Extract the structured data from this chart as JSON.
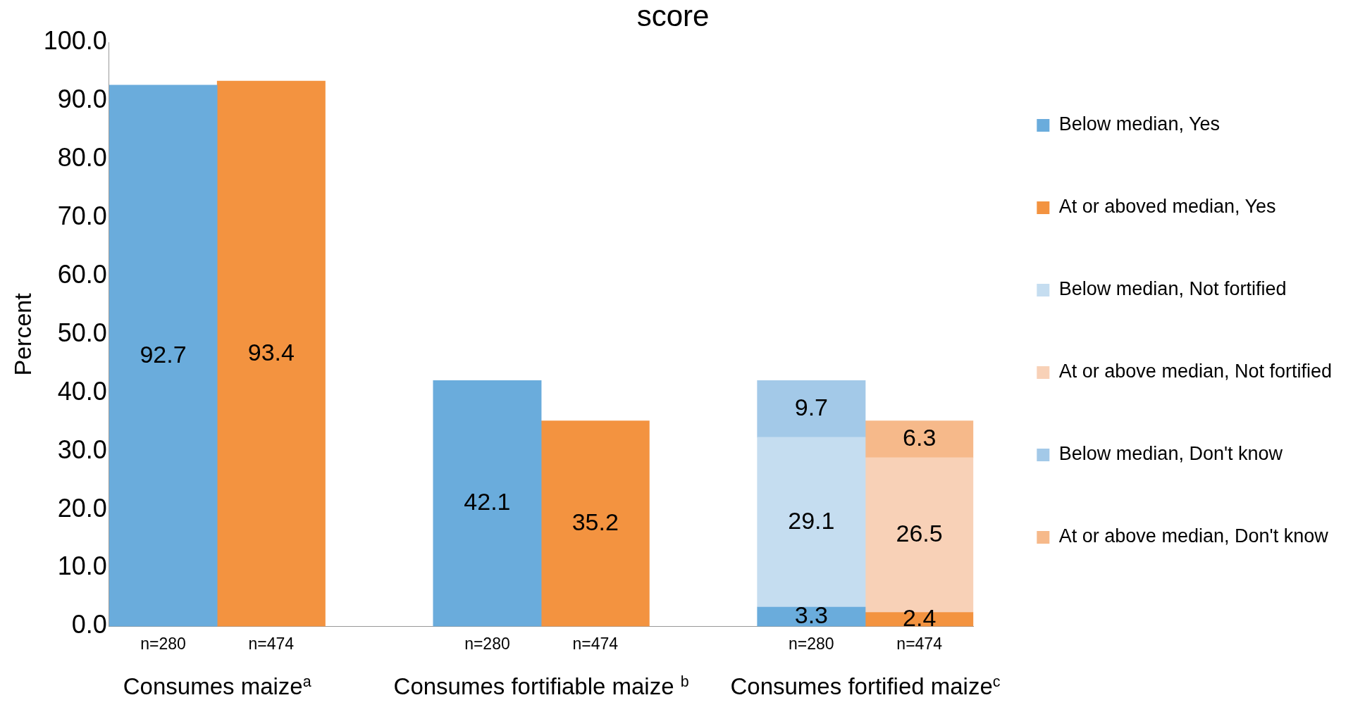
{
  "chart_data": {
    "type": "bar",
    "title": "score",
    "ylabel": "Percent",
    "stacked": true,
    "categories": [
      "n=280",
      "n=474",
      null,
      "n=280",
      "n=474",
      null,
      "n=280",
      "n=474"
    ],
    "series": [
      {
        "name": "Below median, Yes",
        "color": "#6aacdc",
        "values": [
          92.7,
          null,
          null,
          42.1,
          null,
          null,
          3.3,
          null
        ]
      },
      {
        "name": "At or aboved median, Yes",
        "color": "#f39340",
        "values": [
          null,
          93.4,
          null,
          null,
          35.2,
          null,
          null,
          2.4
        ]
      },
      {
        "name": "Below median, Not fortified",
        "color": "#c5ddf0",
        "values": [
          null,
          null,
          null,
          null,
          null,
          null,
          29.1,
          null
        ]
      },
      {
        "name": "At or above median, Not fortified",
        "color": "#f8d1b7",
        "values": [
          null,
          null,
          null,
          null,
          null,
          null,
          null,
          26.5
        ]
      },
      {
        "name": "Below median, Don't know",
        "color": "#a3c9e8",
        "values": [
          null,
          null,
          null,
          null,
          null,
          null,
          9.7,
          null
        ]
      },
      {
        "name": "At or above median, Don't know",
        "color": "#f6b98a",
        "values": [
          null,
          null,
          null,
          null,
          null,
          null,
          null,
          6.3
        ]
      }
    ],
    "ylim": [
      0,
      100
    ],
    "yticks": [
      {
        "value": 0,
        "label": "0.0"
      },
      {
        "value": 10,
        "label": "10.0"
      },
      {
        "value": 20,
        "label": "20.0"
      },
      {
        "value": 30,
        "label": "30.0"
      },
      {
        "value": 40,
        "label": "40.0"
      },
      {
        "value": 50,
        "label": "50.0"
      },
      {
        "value": 60,
        "label": "60.0"
      },
      {
        "value": 70,
        "label": "70.0"
      },
      {
        "value": 80,
        "label": "80.0"
      },
      {
        "value": 90,
        "label": "90.0"
      },
      {
        "value": 100,
        "label": "100.0"
      }
    ],
    "grid": false,
    "legend": "right",
    "data_labels": true,
    "annotations": [
      "Consumes maize$^{a}$",
      "Consumes fortifiable maize $^{b}$",
      "Consumes fortified maize$^{c}$"
    ]
  }
}
